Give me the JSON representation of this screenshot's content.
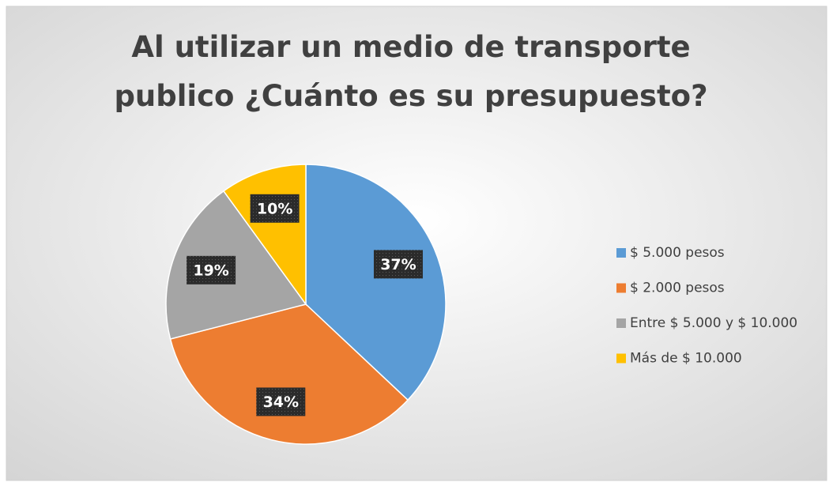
{
  "chart_data": {
    "type": "pie",
    "title": [
      "Al utilizar un medio de transporte",
      "publico ¿Cuánto es su presupuesto?"
    ],
    "categories": [
      "$ 5.000 pesos",
      "$ 2.000 pesos",
      "Entre $ 5.000 y $ 10.000",
      "Más de $ 10.000"
    ],
    "values": [
      37,
      34,
      19,
      10
    ],
    "value_labels": [
      "37%",
      "34%",
      "19%",
      "10%"
    ],
    "colors": [
      "#5b9bd5",
      "#ed7d31",
      "#a5a5a5",
      "#ffc000"
    ],
    "legend": "right"
  }
}
